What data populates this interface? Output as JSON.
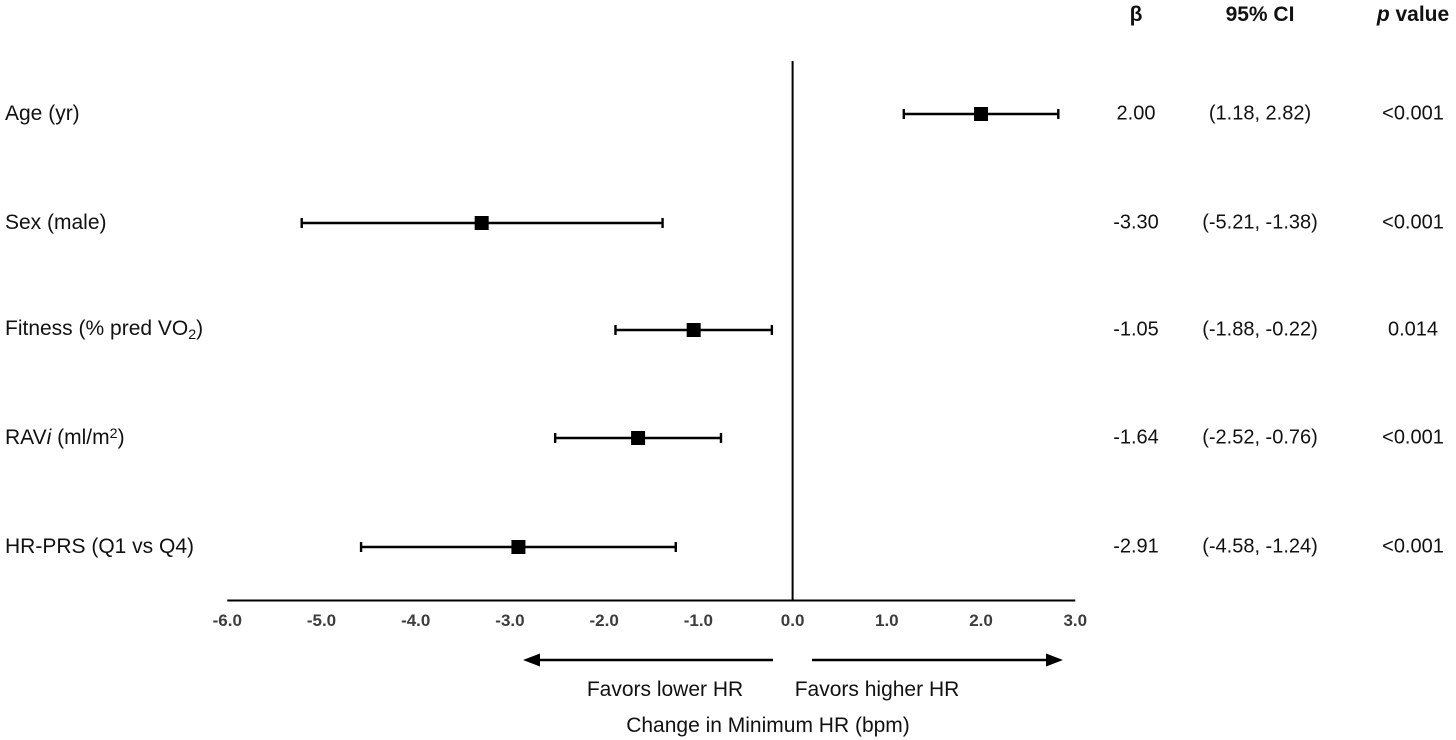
{
  "figure": {
    "background": "#ffffff",
    "ink_color": "#000000",
    "tick_label_color": "#3d3d3d"
  },
  "table": {
    "headers": {
      "beta": "β",
      "beta_html": "β",
      "ci": "95% CI",
      "p": "p value",
      "p_html": "<i>p</i> value"
    }
  },
  "chart_data": {
    "type": "forest",
    "title": "",
    "xlabel": "Change in Minimum HR (bpm)",
    "xlim": [
      -6.0,
      3.0
    ],
    "xticks": [
      -6.0,
      -5.0,
      -4.0,
      -3.0,
      -2.0,
      -1.0,
      0.0,
      1.0,
      2.0,
      3.0
    ],
    "xtick_labels": [
      "-6.0",
      "-5.0",
      "-4.0",
      "-3.0",
      "-2.0",
      "-1.0",
      "0.0",
      "1.0",
      "2.0",
      "3.0"
    ],
    "zero_line": 0.0,
    "marker": "square",
    "grid": false,
    "annotations": {
      "left_arrow_label": "Favors lower HR",
      "right_arrow_label": "Favors higher HR"
    },
    "rows": [
      {
        "label": "Age (yr)",
        "label_html": "Age (yr)",
        "beta": 2.0,
        "ci": [
          1.18,
          2.82
        ],
        "beta_str": "2.00",
        "ci_str": "(1.18, 2.82)",
        "p": "<0.001"
      },
      {
        "label": "Sex (male)",
        "label_html": "Sex (male)",
        "beta": -3.3,
        "ci": [
          -5.21,
          -1.38
        ],
        "beta_str": "-3.30",
        "ci_str": "(-5.21, -1.38)",
        "p": "<0.001"
      },
      {
        "label": "Fitness (% pred VO2)",
        "label_html": "Fitness (% pred VO<sub>2</sub>)",
        "beta": -1.05,
        "ci": [
          -1.88,
          -0.22
        ],
        "beta_str": "-1.05",
        "ci_str": "(-1.88, -0.22)",
        "p": "0.014"
      },
      {
        "label": "RAVi (ml/m2)",
        "label_html": "RAV<i>i</i> (ml/m<sup>2</sup>)",
        "beta": -1.64,
        "ci": [
          -2.52,
          -0.76
        ],
        "beta_str": "-1.64",
        "ci_str": "(-2.52, -0.76)",
        "p": "<0.001"
      },
      {
        "label": "HR-PRS (Q1 vs Q4)",
        "label_html": "HR-PRS (Q1 vs Q4)",
        "beta": -2.91,
        "ci": [
          -4.58,
          -1.24
        ],
        "beta_str": "-2.91",
        "ci_str": "(-4.58, -1.24)",
        "p": "<0.001"
      }
    ]
  }
}
